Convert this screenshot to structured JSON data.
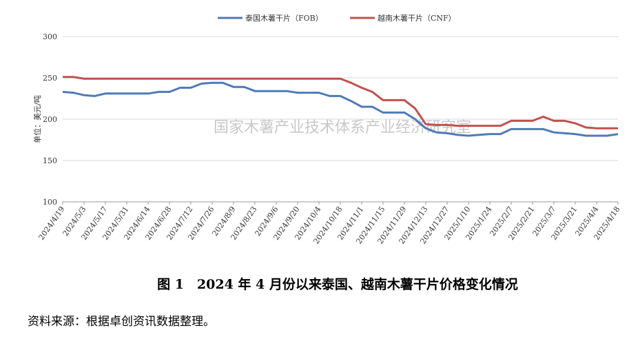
{
  "chart_data": {
    "type": "line",
    "legend_position": "top",
    "grid": true,
    "y_label": "单位：美元/吨",
    "watermark": "国家木薯产业技术体系产业经济研究室",
    "caption": "图 1　2024 年 4 月份以来泰国、越南木薯干片价格变化情况",
    "source": "资料来源：根据卓创资讯数据整理。",
    "categories": [
      "2024/4/19",
      null,
      "2024/5/3",
      null,
      "2024/5/17",
      null,
      "2024/5/31",
      null,
      "2024/6/14",
      null,
      "2024/6/28",
      null,
      "2024/7/12",
      null,
      "2024/7/26",
      null,
      "2024/8/9",
      null,
      "2024/8/23",
      null,
      "2024/9/6",
      null,
      "2024/9/20",
      null,
      "2024/10/4",
      null,
      "2024/10/18",
      null,
      "2024/11/1",
      null,
      "2024/11/15",
      null,
      "2024/11/29",
      null,
      "2024/12/13",
      null,
      "2024/12/27",
      null,
      "2025/1/10",
      null,
      "2025/1/24",
      null,
      "2025/2/7",
      null,
      "2025/2/21",
      null,
      "2025/3/7",
      null,
      "2025/3/21",
      null,
      "2025/4/4",
      null,
      "2025/4/18"
    ],
    "ylim": [
      100,
      300
    ],
    "yticks": [
      100,
      150,
      200,
      250,
      300
    ],
    "series": [
      {
        "name": "泰国木薯干片（FOB）",
        "color": "#4f7ab8",
        "values": [
          233,
          232,
          229,
          228,
          231,
          231,
          231,
          231,
          231,
          233,
          233,
          238,
          238,
          243,
          244,
          244,
          239,
          239,
          234,
          234,
          234,
          234,
          232,
          232,
          232,
          228,
          228,
          222,
          215,
          215,
          208,
          208,
          208,
          200,
          189,
          184,
          183,
          181,
          180,
          181,
          182,
          182,
          188,
          188,
          188,
          188,
          184,
          183,
          182,
          180,
          180,
          180,
          182
        ]
      },
      {
        "name": "越南木薯干片（CNF）",
        "color": "#c0504d",
        "values": [
          251,
          251,
          249,
          249,
          249,
          249,
          249,
          249,
          249,
          249,
          249,
          249,
          249,
          249,
          249,
          249,
          249,
          249,
          249,
          249,
          249,
          249,
          249,
          249,
          249,
          249,
          249,
          244,
          238,
          233,
          223,
          223,
          223,
          213,
          194,
          193,
          193,
          192,
          192,
          192,
          192,
          192,
          198,
          198,
          198,
          203,
          198,
          198,
          195,
          190,
          189,
          189,
          189
        ]
      }
    ]
  }
}
